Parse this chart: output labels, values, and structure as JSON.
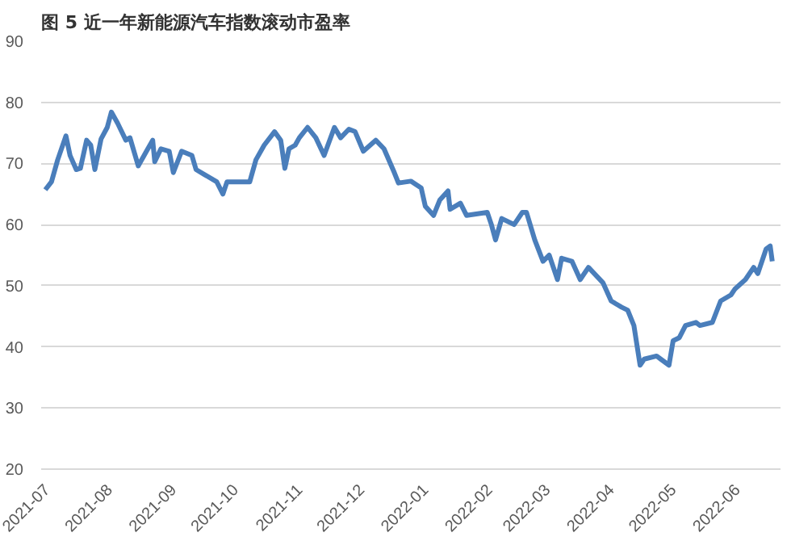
{
  "chart_data": {
    "type": "line",
    "title": "图 5  近一年新能源汽车指数滚动市盈率",
    "x": [
      "2021-07-01",
      "2021-07-04",
      "2021-07-07",
      "2021-07-11",
      "2021-07-13",
      "2021-07-16",
      "2021-07-18",
      "2021-07-21",
      "2021-07-23",
      "2021-07-25",
      "2021-07-28",
      "2021-07-31",
      "2021-08-02",
      "2021-08-05",
      "2021-08-09",
      "2021-08-11",
      "2021-08-15",
      "2021-08-19",
      "2021-08-22",
      "2021-08-23",
      "2021-08-26",
      "2021-08-30",
      "2021-09-01",
      "2021-09-05",
      "2021-09-10",
      "2021-09-12",
      "2021-09-16",
      "2021-09-22",
      "2021-09-25",
      "2021-09-27",
      "2021-10-08",
      "2021-10-11",
      "2021-10-15",
      "2021-10-20",
      "2021-10-23",
      "2021-10-25",
      "2021-10-27",
      "2021-10-30",
      "2021-11-01",
      "2021-11-05",
      "2021-11-09",
      "2021-11-13",
      "2021-11-18",
      "2021-11-21",
      "2021-11-25",
      "2021-11-28",
      "2021-12-02",
      "2021-12-08",
      "2021-12-12",
      "2021-12-17",
      "2021-12-19",
      "2021-12-25",
      "2021-12-30",
      "2022-01-01",
      "2022-01-05",
      "2022-01-08",
      "2022-01-12",
      "2022-01-13",
      "2022-01-18",
      "2022-01-21",
      "2022-01-31",
      "2022-02-02",
      "2022-02-04",
      "2022-02-07",
      "2022-02-13",
      "2022-02-17",
      "2022-02-19",
      "2022-02-23",
      "2022-02-27",
      "2022-03-02",
      "2022-03-06",
      "2022-03-08",
      "2022-03-13",
      "2022-03-17",
      "2022-03-21",
      "2022-03-28",
      "2022-04-01",
      "2022-04-06",
      "2022-04-09",
      "2022-04-12",
      "2022-04-15",
      "2022-04-17",
      "2022-04-23",
      "2022-04-25",
      "2022-04-29",
      "2022-05-01",
      "2022-05-04",
      "2022-05-07",
      "2022-05-12",
      "2022-05-14",
      "2022-05-20",
      "2022-05-24",
      "2022-05-29",
      "2022-05-31",
      "2022-06-05",
      "2022-06-09",
      "2022-06-11",
      "2022-06-15",
      "2022-06-17",
      "2022-06-18"
    ],
    "series": [
      {
        "color": "#4a7ebb",
        "values": [
          65.7,
          67,
          70.6,
          74.5,
          71.3,
          69,
          69.2,
          73.8,
          73,
          69,
          74,
          75.9,
          78.4,
          76.6,
          73.8,
          74.2,
          69.6,
          72,
          73.8,
          70.3,
          72.4,
          72,
          68.5,
          72,
          71.3,
          69,
          68.2,
          67,
          65,
          67,
          67,
          70.6,
          73,
          75.2,
          73.8,
          69.2,
          72.4,
          73,
          74.2,
          75.9,
          74.2,
          71.3,
          75.9,
          74.2,
          75.6,
          75.2,
          72,
          73.8,
          72.4,
          68.5,
          66.8,
          67.1,
          66,
          63,
          61.5,
          64,
          65.5,
          62.5,
          63.5,
          61.5,
          62,
          60,
          57.5,
          61,
          60,
          62,
          62,
          57.5,
          54,
          55,
          51,
          54.5,
          54,
          51,
          53,
          50.5,
          47.5,
          46.5,
          46,
          43.5,
          37,
          38,
          38.5,
          38,
          37,
          41,
          41.5,
          43.5,
          44,
          43.5,
          44,
          47.5,
          48.5,
          49.5,
          51,
          53,
          52,
          56,
          56.5,
          54
        ]
      }
    ],
    "xlim": [
      "2021-06-29",
      "2022-06-22"
    ],
    "xticks": [
      {
        "value": "2021-07-01",
        "label": "2021-07"
      },
      {
        "value": "2021-08-01",
        "label": "2021-08"
      },
      {
        "value": "2021-09-01",
        "label": "2021-09"
      },
      {
        "value": "2021-10-01",
        "label": "2021-10"
      },
      {
        "value": "2021-11-01",
        "label": "2021-11"
      },
      {
        "value": "2021-12-01",
        "label": "2021-12"
      },
      {
        "value": "2022-01-01",
        "label": "2022-01"
      },
      {
        "value": "2022-02-01",
        "label": "2022-02"
      },
      {
        "value": "2022-03-01",
        "label": "2022-03"
      },
      {
        "value": "2022-04-01",
        "label": "2022-04"
      },
      {
        "value": "2022-05-01",
        "label": "2022-05"
      },
      {
        "value": "2022-06-01",
        "label": "2022-06"
      }
    ],
    "ylim": [
      20,
      90
    ],
    "yticks": [
      20,
      30,
      40,
      50,
      60,
      70,
      80,
      90
    ],
    "grid": "y",
    "line_style": "solid"
  }
}
